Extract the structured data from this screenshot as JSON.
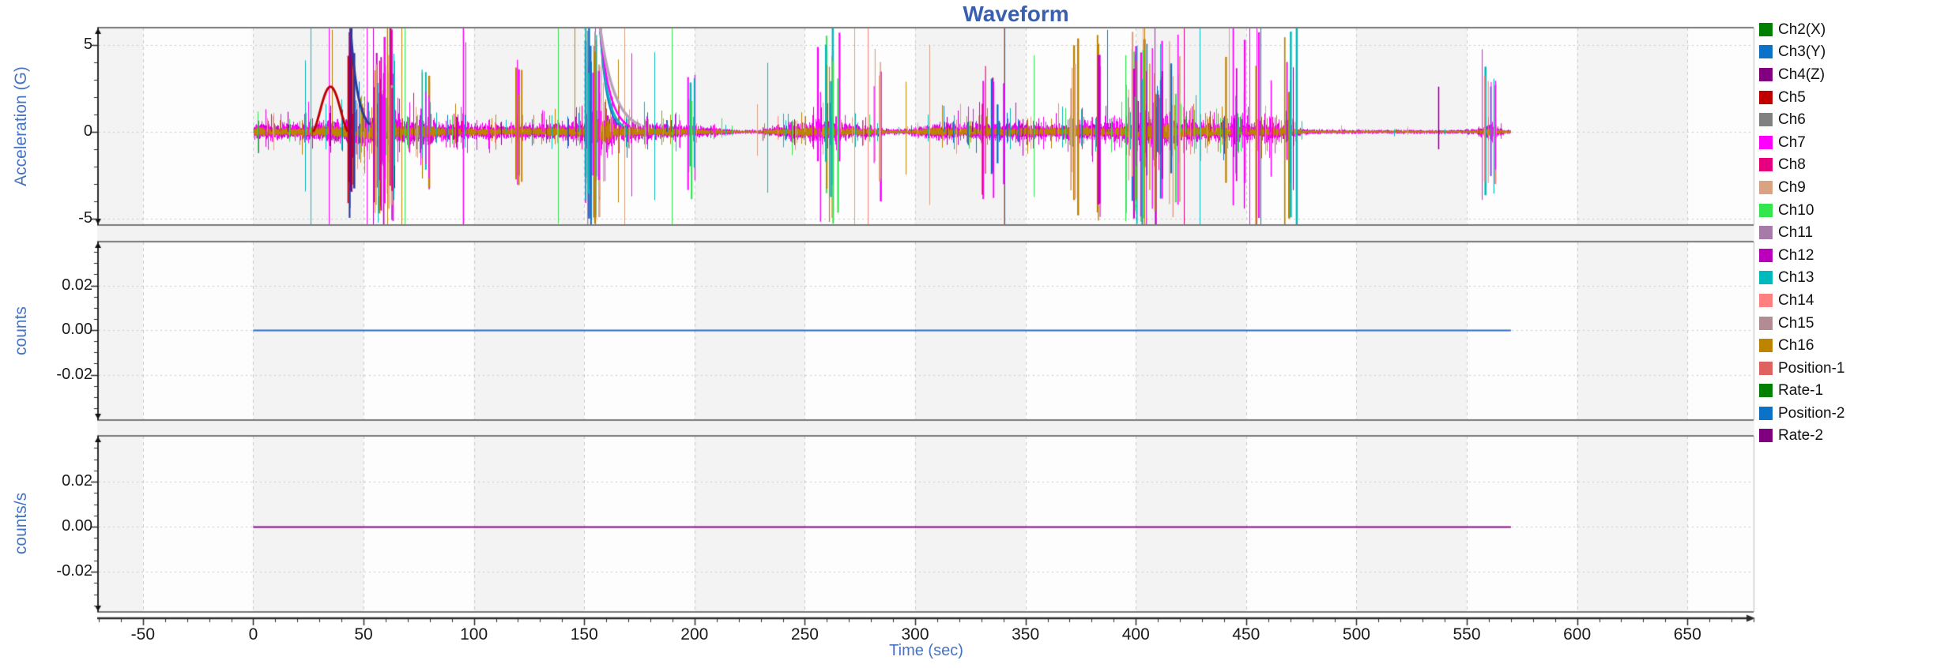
{
  "title": {
    "text": "Waveform",
    "color": "#3A5FAE"
  },
  "x_axis": {
    "label": "Time (sec)",
    "label_color": "#4573C4",
    "range": [
      -70,
      680
    ],
    "minor_step": 10,
    "ticks": [
      "-50",
      "0",
      "50",
      "100",
      "150",
      "200",
      "250",
      "300",
      "350",
      "400",
      "450",
      "500",
      "550",
      "600",
      "650"
    ],
    "tick_values": [
      -50,
      0,
      50,
      100,
      150,
      200,
      250,
      300,
      350,
      400,
      450,
      500,
      550,
      600,
      650
    ]
  },
  "legend": {
    "items": [
      {
        "label": "Ch2(X)",
        "color": "#008000"
      },
      {
        "label": "Ch3(Y)",
        "color": "#0B72C8"
      },
      {
        "label": "Ch4(Z)",
        "color": "#800080"
      },
      {
        "label": "Ch5",
        "color": "#C00000"
      },
      {
        "label": "Ch6",
        "color": "#808080"
      },
      {
        "label": "Ch7",
        "color": "#FF00FF"
      },
      {
        "label": "Ch8",
        "color": "#E6007E"
      },
      {
        "label": "Ch9",
        "color": "#DBA183"
      },
      {
        "label": "Ch10",
        "color": "#33E64D"
      },
      {
        "label": "Ch11",
        "color": "#A77BA8"
      },
      {
        "label": "Ch12",
        "color": "#BB00BB"
      },
      {
        "label": "Ch13",
        "color": "#00B9BC"
      },
      {
        "label": "Ch14",
        "color": "#FF8080"
      },
      {
        "label": "Ch15",
        "color": "#B18C95"
      },
      {
        "label": "Ch16",
        "color": "#BE8400"
      },
      {
        "label": "Position-1",
        "color": "#DE6360"
      },
      {
        "label": "Rate-1",
        "color": "#008000"
      },
      {
        "label": "Position-2",
        "color": "#0B72C8"
      },
      {
        "label": "Rate-2",
        "color": "#800080"
      }
    ]
  },
  "style": {
    "panel_bg": "#FDFDFD",
    "band_color": "#F3F3F4",
    "grid_color": "#CACACA",
    "frame_color": "#787878",
    "axis_color": "#2A2A2A",
    "gap_color": "#F2F2F2"
  },
  "chart_data": [
    {
      "type": "line",
      "panel": "acceleration",
      "ylabel": "Acceleration (G)",
      "xlabel": "Time (sec)",
      "ylim": [
        -5.2,
        6.0
      ],
      "xlim": [
        -70,
        680
      ],
      "y_ticks": [
        "5",
        "0",
        "-5"
      ],
      "y_tick_values": [
        5,
        0,
        -5
      ],
      "y_minor_step": 1,
      "grid": true,
      "legend_position": "right",
      "series_names": [
        "Ch2(X)",
        "Ch3(Y)",
        "Ch4(Z)",
        "Ch5",
        "Ch6",
        "Ch7",
        "Ch8",
        "Ch9",
        "Ch10",
        "Ch11",
        "Ch12",
        "Ch13",
        "Ch14",
        "Ch15",
        "Ch16"
      ],
      "signal": {
        "t_start": 0,
        "t_end": 570,
        "description": "dense multi-channel vibration noise, roughly symmetric about 0 G, many spikes clipping beyond +/-5 G",
        "baseline_color": "#C00000",
        "envelope_g": [
          [
            0,
            0.5
          ],
          [
            20,
            0.45
          ],
          [
            30,
            0.55
          ],
          [
            50,
            0.8
          ],
          [
            57,
            1.1
          ],
          [
            63,
            1.1
          ],
          [
            68,
            0.6
          ],
          [
            75,
            0.7
          ],
          [
            80,
            0.9
          ],
          [
            83,
            0.5
          ],
          [
            95,
            0.45
          ],
          [
            110,
            0.4
          ],
          [
            125,
            0.45
          ],
          [
            140,
            0.5
          ],
          [
            150,
            0.6
          ],
          [
            154,
            1.3
          ],
          [
            161,
            1.3
          ],
          [
            165,
            0.6
          ],
          [
            180,
            0.5
          ],
          [
            195,
            0.4
          ],
          [
            210,
            0.25
          ],
          [
            218,
            0.12
          ],
          [
            228,
            0.1
          ],
          [
            235,
            0.3
          ],
          [
            243,
            0.45
          ],
          [
            250,
            0.5
          ],
          [
            257,
            0.65
          ],
          [
            263,
            0.6
          ],
          [
            270,
            0.45
          ],
          [
            280,
            0.35
          ],
          [
            288,
            0.18
          ],
          [
            295,
            0.15
          ],
          [
            303,
            0.35
          ],
          [
            312,
            0.5
          ],
          [
            322,
            0.42
          ],
          [
            332,
            0.5
          ],
          [
            342,
            0.45
          ],
          [
            352,
            0.5
          ],
          [
            362,
            0.45
          ],
          [
            370,
            0.5
          ],
          [
            378,
            0.55
          ],
          [
            386,
            0.5
          ],
          [
            394,
            0.65
          ],
          [
            400,
            0.8
          ],
          [
            406,
            0.95
          ],
          [
            412,
            0.95
          ],
          [
            418,
            0.8
          ],
          [
            424,
            0.65
          ],
          [
            430,
            0.55
          ],
          [
            436,
            0.6
          ],
          [
            442,
            0.55
          ],
          [
            448,
            0.5
          ],
          [
            454,
            0.45
          ],
          [
            458,
            0.55
          ],
          [
            463,
            0.5
          ],
          [
            468,
            0.45
          ],
          [
            472,
            0.35
          ],
          [
            476,
            0.18
          ],
          [
            482,
            0.14
          ],
          [
            490,
            0.13
          ],
          [
            500,
            0.12
          ],
          [
            510,
            0.11
          ],
          [
            520,
            0.12
          ],
          [
            530,
            0.11
          ],
          [
            540,
            0.12
          ],
          [
            548,
            0.13
          ],
          [
            554,
            0.16
          ],
          [
            558,
            0.35
          ],
          [
            561,
            0.45
          ],
          [
            564,
            0.25
          ],
          [
            567,
            0.15
          ],
          [
            570,
            0.12
          ]
        ],
        "spike_rate": [
          [
            0,
            0.22
          ],
          [
            20,
            0.25
          ],
          [
            35,
            0.3
          ],
          [
            50,
            0.45
          ],
          [
            60,
            0.5
          ],
          [
            68,
            0.3
          ],
          [
            80,
            0.35
          ],
          [
            95,
            0.28
          ],
          [
            110,
            0.22
          ],
          [
            125,
            0.25
          ],
          [
            140,
            0.3
          ],
          [
            150,
            0.45
          ],
          [
            162,
            0.45
          ],
          [
            172,
            0.3
          ],
          [
            185,
            0.28
          ],
          [
            200,
            0.22
          ],
          [
            212,
            0.12
          ],
          [
            222,
            0.03
          ],
          [
            232,
            0.12
          ],
          [
            242,
            0.25
          ],
          [
            252,
            0.35
          ],
          [
            262,
            0.4
          ],
          [
            272,
            0.28
          ],
          [
            282,
            0.15
          ],
          [
            292,
            0.08
          ],
          [
            302,
            0.18
          ],
          [
            315,
            0.25
          ],
          [
            330,
            0.28
          ],
          [
            345,
            0.28
          ],
          [
            360,
            0.28
          ],
          [
            375,
            0.3
          ],
          [
            388,
            0.35
          ],
          [
            398,
            0.45
          ],
          [
            408,
            0.55
          ],
          [
            418,
            0.5
          ],
          [
            428,
            0.38
          ],
          [
            438,
            0.35
          ],
          [
            448,
            0.35
          ],
          [
            458,
            0.35
          ],
          [
            466,
            0.38
          ],
          [
            472,
            0.4
          ],
          [
            477,
            0.08
          ],
          [
            488,
            0.04
          ],
          [
            505,
            0.03
          ],
          [
            525,
            0.04
          ],
          [
            545,
            0.04
          ],
          [
            555,
            0.15
          ],
          [
            560,
            0.3
          ],
          [
            564,
            0.1
          ],
          [
            570,
            0.04
          ]
        ],
        "base_layers": [
          {
            "color": "#B18C95",
            "scale": 0.85,
            "pow": 1.2,
            "floor": 0.3
          },
          {
            "color": "#CC00CC",
            "scale": 1.05,
            "pow": 1.6,
            "floor": 0.25
          },
          {
            "color": "#FF00FF",
            "scale": 1.3,
            "pow": 2.2,
            "floor": 0.2
          },
          {
            "color": "#BE8400",
            "scale": 0.55,
            "pow": 1.0,
            "floor": 0.4
          }
        ],
        "spike_palette": [
          [
            "#FF00FF",
            20
          ],
          [
            "#00B9BC",
            14
          ],
          [
            "#DBA183",
            13
          ],
          [
            "#BE8400",
            13
          ],
          [
            "#CC00CC",
            10
          ],
          [
            "#33E64D",
            8
          ],
          [
            "#0B72C8",
            7
          ],
          [
            "#E6007E",
            6
          ],
          [
            "#800080",
            5
          ],
          [
            "#FF8080",
            4
          ]
        ],
        "events": [
          {
            "type": "hump",
            "t0": 27,
            "t1": 43,
            "peak_g": 2.6,
            "color": "#C00000",
            "w": 3
          },
          {
            "type": "burst",
            "t0": 42.5,
            "t1": 45.5,
            "count": 8,
            "min_g": 3.5,
            "max_g": 6.3,
            "colors": [
              "#2B3A9A",
              "#800080",
              "#C00000"
            ]
          },
          {
            "type": "decay",
            "t0": 44,
            "t1": 53,
            "from_g": 6.2,
            "to_g": 0.4,
            "color": "#2B3A9A",
            "w": 3
          },
          {
            "type": "burst",
            "t0": 54,
            "t1": 64,
            "count": 30,
            "min_g": 2,
            "max_g": 6.3,
            "colors": [
              "#BE8400",
              "#FF00FF",
              "#00B9BC",
              "#DBA183",
              "#CC00CC",
              "#E6007E"
            ]
          },
          {
            "type": "burst",
            "t0": 76,
            "t1": 80,
            "count": 8,
            "min_g": 1.5,
            "max_g": 4,
            "colors": [
              "#FF00FF",
              "#00B9BC",
              "#BE8400"
            ]
          },
          {
            "type": "spike",
            "t": 95,
            "color": "#FF00FF",
            "up_g": 6.3,
            "down_g": -5.4,
            "w": 1.5
          },
          {
            "type": "burst",
            "t0": 118,
            "t1": 122,
            "count": 5,
            "min_g": 2,
            "max_g": 5,
            "colors": [
              "#BE8400",
              "#FF00FF"
            ]
          },
          {
            "type": "burst",
            "t0": 150,
            "t1": 157,
            "count": 26,
            "min_g": 3,
            "max_g": 6.3,
            "colors": [
              "#FF00FF",
              "#00B9BC",
              "#DBA183",
              "#B18C95",
              "#0B72C8",
              "#BE8400"
            ]
          },
          {
            "type": "decay",
            "t0": 157,
            "t1": 166,
            "from_g": 6.2,
            "to_g": 0.35,
            "color": "#0B72C8",
            "w": 2
          },
          {
            "type": "decay",
            "t0": 157,
            "t1": 168,
            "from_g": 6.2,
            "to_g": 0.3,
            "color": "#00B9BC",
            "w": 2.5
          },
          {
            "type": "decay",
            "t0": 157,
            "t1": 171,
            "from_g": 6.2,
            "to_g": 0.3,
            "color": "#FF00FF",
            "w": 2.5
          },
          {
            "type": "decay",
            "t0": 157,
            "t1": 176,
            "from_g": 6.2,
            "to_g": 0.35,
            "color": "#B9A2B8",
            "w": 3.5
          },
          {
            "type": "burst",
            "t0": 196,
            "t1": 200,
            "count": 6,
            "min_g": 1.5,
            "max_g": 4.5,
            "colors": [
              "#33E64D",
              "#FF00FF",
              "#00B9BC"
            ]
          },
          {
            "type": "burst",
            "t0": 255,
            "t1": 266,
            "count": 12,
            "min_g": 2,
            "max_g": 6.3,
            "colors": [
              "#BE8400",
              "#FF00FF",
              "#00B9BC",
              "#33E64D"
            ]
          },
          {
            "type": "burst",
            "t0": 281,
            "t1": 284,
            "count": 5,
            "min_g": 2,
            "max_g": 5,
            "colors": [
              "#DBA183",
              "#FF00FF"
            ]
          },
          {
            "type": "burst",
            "t0": 325,
            "t1": 340,
            "count": 8,
            "min_g": 1.5,
            "max_g": 4.5,
            "colors": [
              "#FF00FF",
              "#E6007E",
              "#0B72C8"
            ]
          },
          {
            "type": "burst",
            "t0": 370,
            "t1": 374,
            "count": 5,
            "min_g": 2.5,
            "max_g": 6,
            "colors": [
              "#DBA183",
              "#BE8400"
            ]
          },
          {
            "type": "burst",
            "t0": 381,
            "t1": 385,
            "count": 6,
            "min_g": 3,
            "max_g": 6.3,
            "colors": [
              "#BE8400",
              "#CC00CC"
            ]
          },
          {
            "type": "burst",
            "t0": 395,
            "t1": 420,
            "count": 34,
            "min_g": 2,
            "max_g": 6.3,
            "colors": [
              "#BE8400",
              "#FF00FF",
              "#00B9BC",
              "#DBA183",
              "#33E64D",
              "#0B72C8",
              "#CC00CC"
            ]
          },
          {
            "type": "burst",
            "t0": 440,
            "t1": 470,
            "count": 14,
            "min_g": 2,
            "max_g": 6.3,
            "colors": [
              "#FF00FF",
              "#BE8400",
              "#00B9BC",
              "#CC00CC"
            ]
          },
          {
            "type": "spike",
            "t": 472.5,
            "color": "#00B9BC",
            "up_g": 6.3,
            "down_g": -5.4,
            "w": 2.5
          },
          {
            "type": "spike",
            "t": 537,
            "color": "#800080",
            "up_g": 2.6,
            "down_g": -1.0,
            "w": 1.5
          },
          {
            "type": "burst",
            "t0": 557,
            "t1": 563,
            "count": 8,
            "min_g": 2.5,
            "max_g": 4.4,
            "colors": [
              "#00B9BC",
              "#FF8080",
              "#FF00FF"
            ]
          }
        ]
      }
    },
    {
      "type": "line",
      "panel": "counts",
      "ylabel": "counts",
      "ylim": [
        -0.04,
        0.04
      ],
      "y_ticks": [
        "0.02",
        "0.00",
        "-0.02"
      ],
      "y_tick_values": [
        0.02,
        0,
        -0.02
      ],
      "y_minor_step": 0.005,
      "series": [
        {
          "name": "Position-2",
          "color": "#2B6BC8",
          "x": [
            0,
            570
          ],
          "y": [
            0,
            0
          ]
        }
      ]
    },
    {
      "type": "line",
      "panel": "counts_per_sec",
      "ylabel": "counts/s",
      "ylim": [
        -0.039,
        0.04
      ],
      "y_ticks": [
        "0.02",
        "0.00",
        "-0.02"
      ],
      "y_tick_values": [
        0.02,
        0,
        -0.02
      ],
      "y_minor_step": 0.005,
      "series": [
        {
          "name": "Rate-2",
          "color": "#8A0B8A",
          "x": [
            0,
            570
          ],
          "y": [
            0,
            0
          ]
        }
      ]
    }
  ]
}
